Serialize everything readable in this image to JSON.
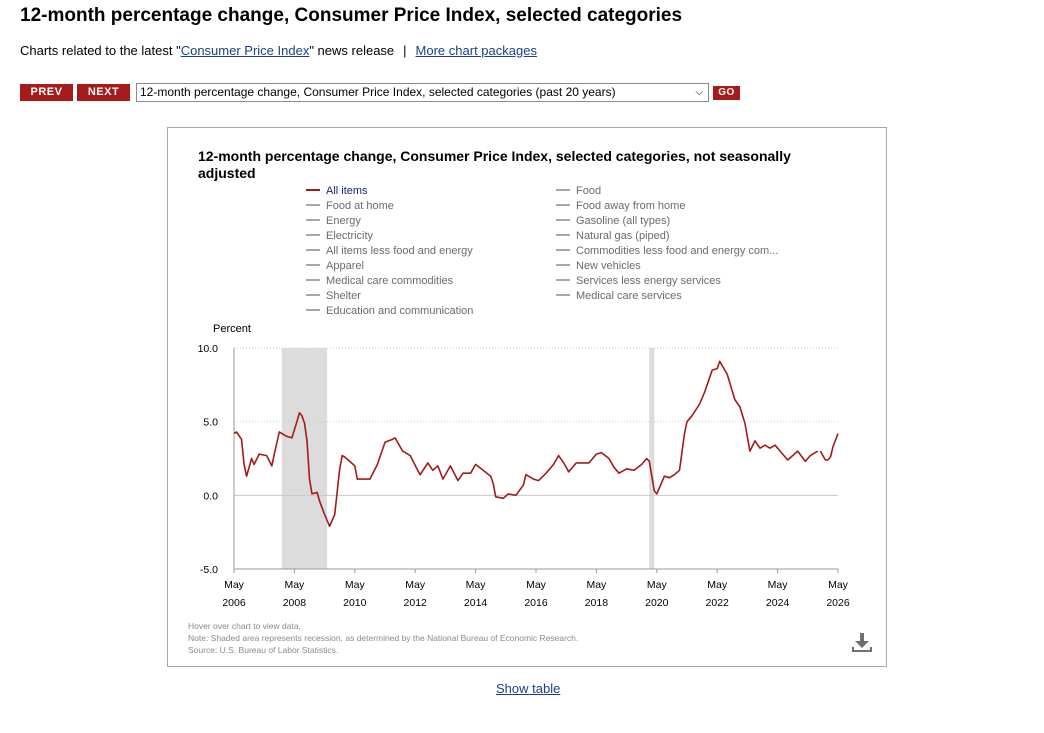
{
  "page": {
    "title": "12-month percentage change, Consumer Price Index, selected categories",
    "release_prefix": "Charts related to the latest \"",
    "release_link": "Consumer Price Index",
    "release_suffix": "\" news release",
    "separator": "|",
    "more_link": "More chart packages"
  },
  "nav": {
    "prev_label": "PREV",
    "next_label": "NEXT",
    "selected_chart": "12-month percentage change, Consumer Price Index, selected categories (past 20 years)",
    "go_label": "GO"
  },
  "chart": {
    "title": "12-month percentage change, Consumer Price Index, selected categories, not seasonally adjusted",
    "legend_left": [
      "All items",
      "Food at home",
      "Energy",
      "Electricity",
      "All items less food and energy",
      "Apparel",
      "Medical care commodities",
      "Shelter",
      "Education and communication"
    ],
    "legend_right": [
      "Food",
      "Food away from home",
      "Gasoline (all types)",
      "Natural gas (piped)",
      "Commodities less food and energy com...",
      "New vehicles",
      "Services less energy services",
      "Medical care services"
    ],
    "active_series": "All items",
    "footnotes": [
      "Hover over chart to view data.",
      "Note: Shaded area represents recession, as determined by the National Bureau of Economic Research.",
      "Source: U.S. Bureau of Labor Statistics."
    ],
    "download_icon": "download-icon",
    "colors": {
      "series": "#a11b1b",
      "recession": "#dcdcdc",
      "buttons": "#a61c1c"
    }
  },
  "chart_data": {
    "type": "line",
    "title": "12-month percentage change, Consumer Price Index, selected categories, not seasonally adjusted",
    "ylabel": "Percent",
    "ylim": [
      -5.0,
      10.0
    ],
    "yticks": [
      "10.0",
      "5.0",
      "0.0",
      "-5.0"
    ],
    "xticks": [
      [
        "May",
        "2006"
      ],
      [
        "May",
        "2008"
      ],
      [
        "May",
        "2010"
      ],
      [
        "May",
        "2012"
      ],
      [
        "May",
        "2014"
      ],
      [
        "May",
        "2016"
      ],
      [
        "May",
        "2018"
      ],
      [
        "May",
        "2020"
      ],
      [
        "May",
        "2022"
      ],
      [
        "May",
        "2024"
      ],
      [
        "May",
        "2026"
      ]
    ],
    "x_range": [
      "2006-05",
      "2026-05"
    ],
    "grid": "dotted horizontal",
    "recessions": [
      [
        "2007-12",
        "2009-06"
      ],
      [
        "2020-02",
        "2020-04"
      ]
    ],
    "series": [
      {
        "name": "All items",
        "points": [
          [
            "2006-05",
            4.2
          ],
          [
            "2006-06",
            4.3
          ],
          [
            "2006-08",
            3.8
          ],
          [
            "2006-09",
            2.1
          ],
          [
            "2006-10",
            1.3
          ],
          [
            "2006-12",
            2.5
          ],
          [
            "2007-01",
            2.1
          ],
          [
            "2007-03",
            2.8
          ],
          [
            "2007-06",
            2.7
          ],
          [
            "2007-08",
            2.0
          ],
          [
            "2007-09",
            2.8
          ],
          [
            "2007-11",
            4.3
          ],
          [
            "2008-02",
            4.0
          ],
          [
            "2008-04",
            3.9
          ],
          [
            "2008-06",
            5.0
          ],
          [
            "2008-07",
            5.6
          ],
          [
            "2008-08",
            5.4
          ],
          [
            "2008-09",
            4.9
          ],
          [
            "2008-10",
            3.7
          ],
          [
            "2008-11",
            1.1
          ],
          [
            "2008-12",
            0.1
          ],
          [
            "2009-02",
            0.2
          ],
          [
            "2009-03",
            -0.4
          ],
          [
            "2009-05",
            -1.3
          ],
          [
            "2009-07",
            -2.1
          ],
          [
            "2009-09",
            -1.3
          ],
          [
            "2009-11",
            1.8
          ],
          [
            "2009-12",
            2.7
          ],
          [
            "2010-01",
            2.6
          ],
          [
            "2010-03",
            2.3
          ],
          [
            "2010-05",
            2.0
          ],
          [
            "2010-06",
            1.1
          ],
          [
            "2010-09",
            1.1
          ],
          [
            "2010-11",
            1.1
          ],
          [
            "2011-02",
            2.1
          ],
          [
            "2011-05",
            3.6
          ],
          [
            "2011-08",
            3.8
          ],
          [
            "2011-09",
            3.9
          ],
          [
            "2011-12",
            3.0
          ],
          [
            "2012-03",
            2.7
          ],
          [
            "2012-06",
            1.7
          ],
          [
            "2012-07",
            1.4
          ],
          [
            "2012-10",
            2.2
          ],
          [
            "2012-12",
            1.7
          ],
          [
            "2013-02",
            2.0
          ],
          [
            "2013-04",
            1.1
          ],
          [
            "2013-07",
            2.0
          ],
          [
            "2013-10",
            1.0
          ],
          [
            "2013-12",
            1.5
          ],
          [
            "2014-03",
            1.5
          ],
          [
            "2014-05",
            2.1
          ],
          [
            "2014-08",
            1.7
          ],
          [
            "2014-11",
            1.3
          ],
          [
            "2014-12",
            0.8
          ],
          [
            "2015-01",
            -0.1
          ],
          [
            "2015-04",
            -0.2
          ],
          [
            "2015-06",
            0.1
          ],
          [
            "2015-09",
            0.0
          ],
          [
            "2015-12",
            0.7
          ],
          [
            "2016-01",
            1.4
          ],
          [
            "2016-04",
            1.1
          ],
          [
            "2016-06",
            1.0
          ],
          [
            "2016-09",
            1.5
          ],
          [
            "2016-12",
            2.1
          ],
          [
            "2017-02",
            2.7
          ],
          [
            "2017-04",
            2.2
          ],
          [
            "2017-06",
            1.6
          ],
          [
            "2017-09",
            2.2
          ],
          [
            "2017-11",
            2.2
          ],
          [
            "2018-02",
            2.2
          ],
          [
            "2018-05",
            2.8
          ],
          [
            "2018-07",
            2.9
          ],
          [
            "2018-10",
            2.5
          ],
          [
            "2018-12",
            1.9
          ],
          [
            "2019-02",
            1.5
          ],
          [
            "2019-05",
            1.8
          ],
          [
            "2019-08",
            1.7
          ],
          [
            "2019-11",
            2.1
          ],
          [
            "2020-01",
            2.5
          ],
          [
            "2020-02",
            2.3
          ],
          [
            "2020-04",
            0.3
          ],
          [
            "2020-05",
            0.1
          ],
          [
            "2020-08",
            1.3
          ],
          [
            "2020-10",
            1.2
          ],
          [
            "2020-12",
            1.4
          ],
          [
            "2021-02",
            1.7
          ],
          [
            "2021-04",
            4.2
          ],
          [
            "2021-05",
            5.0
          ],
          [
            "2021-07",
            5.4
          ],
          [
            "2021-10",
            6.2
          ],
          [
            "2021-12",
            7.0
          ],
          [
            "2022-03",
            8.5
          ],
          [
            "2022-05",
            8.6
          ],
          [
            "2022-06",
            9.1
          ],
          [
            "2022-09",
            8.2
          ],
          [
            "2022-12",
            6.5
          ],
          [
            "2023-02",
            6.0
          ],
          [
            "2023-04",
            4.9
          ],
          [
            "2023-06",
            3.0
          ],
          [
            "2023-08",
            3.7
          ],
          [
            "2023-10",
            3.2
          ],
          [
            "2023-12",
            3.4
          ],
          [
            "2024-02",
            3.2
          ],
          [
            "2024-04",
            3.4
          ],
          [
            "2024-06",
            3.0
          ],
          [
            "2024-09",
            2.4
          ],
          [
            "2024-11",
            2.7
          ],
          [
            "2025-01",
            3.0
          ],
          [
            "2025-04",
            2.3
          ],
          [
            "2025-06",
            2.7
          ],
          [
            "2025-09",
            3.0
          ]
        ]
      },
      {
        "name": "All items",
        "points": [
          [
            "2025-10",
            3.0
          ],
          [
            "2025-11",
            2.7
          ],
          [
            "2025-12",
            2.4
          ],
          [
            "2026-01",
            2.4
          ],
          [
            "2026-02",
            2.6
          ],
          [
            "2026-03",
            3.3
          ],
          [
            "2026-05",
            4.2
          ]
        ]
      }
    ]
  },
  "footer": {
    "show_table": "Show table"
  }
}
